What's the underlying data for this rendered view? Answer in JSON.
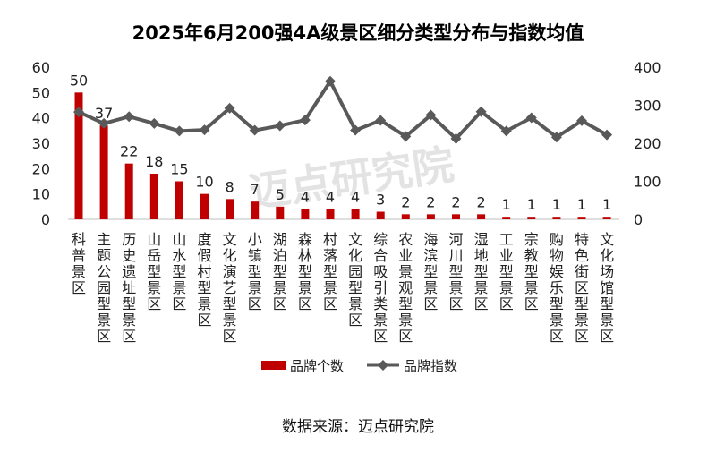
{
  "chart_data": {
    "type": "bar+line",
    "title": "2025年6月200强4A级景区细分类型分布与指数均值",
    "categories": [
      "科普景区",
      "主题公园型景区",
      "历史遗址型景区",
      "山岳型景区",
      "山水型景区",
      "度假村型景区",
      "文化演艺型景区",
      "小镇型景区",
      "湖泊型景区",
      "森林型景区",
      "村落型景区",
      "文化园型景区",
      "综合吸引类景区",
      "农业景观型景区",
      "海滨型景区",
      "河川型景区",
      "湿地型景区",
      "工业型景区",
      "宗教型景区",
      "购物娱乐型景区",
      "特色街区型景区",
      "文化场馆型景区"
    ],
    "series": [
      {
        "name": "品牌个数",
        "type": "bar",
        "axis": "left",
        "color": "#c00000",
        "values": [
          50,
          37,
          22,
          18,
          15,
          10,
          8,
          7,
          5,
          4,
          4,
          4,
          3,
          2,
          2,
          2,
          2,
          1,
          1,
          1,
          1,
          1
        ]
      },
      {
        "name": "品牌指数",
        "type": "line",
        "axis": "right",
        "color": "#595959",
        "values": [
          282,
          252,
          270,
          252,
          232,
          235,
          292,
          234,
          246,
          261,
          363,
          234,
          260,
          218,
          274,
          212,
          283,
          232,
          267,
          216,
          259,
          222
        ]
      }
    ],
    "left_axis": {
      "ylim": [
        0,
        60
      ],
      "ticks": [
        "0",
        "10",
        "20",
        "30",
        "40",
        "50",
        "60"
      ]
    },
    "right_axis": {
      "ylim": [
        0,
        400
      ],
      "ticks": [
        "0",
        "100",
        "200",
        "300",
        "400"
      ]
    },
    "legend_position": "bottom",
    "grid": false
  },
  "source_text": "数据来源：迈点研究院",
  "watermark_text": "迈点研究院"
}
